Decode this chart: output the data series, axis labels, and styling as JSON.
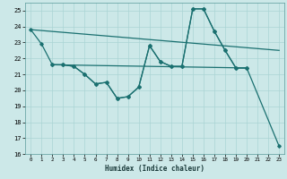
{
  "xlabel": "Humidex (Indice chaleur)",
  "bg_color": "#cce8e8",
  "line_color": "#1a7070",
  "grid_color": "#aad4d4",
  "xlim": [
    -0.5,
    23.5
  ],
  "ylim": [
    16,
    25.5
  ],
  "xticks": [
    0,
    1,
    2,
    3,
    4,
    5,
    6,
    7,
    8,
    9,
    10,
    11,
    12,
    13,
    14,
    15,
    16,
    17,
    18,
    19,
    20,
    21,
    22,
    23
  ],
  "yticks": [
    16,
    17,
    18,
    19,
    20,
    21,
    22,
    23,
    24,
    25
  ],
  "line1_x": [
    0,
    1,
    2,
    3,
    4,
    5,
    6,
    7,
    8,
    9,
    10,
    11,
    12,
    13,
    14,
    15,
    16,
    17,
    18,
    19,
    20,
    23
  ],
  "line1_y": [
    23.8,
    22.9,
    21.6,
    21.6,
    21.5,
    21.0,
    20.4,
    20.5,
    19.5,
    19.6,
    20.2,
    22.8,
    21.8,
    21.5,
    21.5,
    25.1,
    25.1,
    23.7,
    22.5,
    21.4,
    21.4,
    16.5
  ],
  "line2_x": [
    0,
    23
  ],
  "line2_y": [
    23.8,
    22.5
  ],
  "line3_x": [
    2,
    3,
    4,
    5,
    6,
    7,
    8,
    9,
    10,
    11,
    12,
    13,
    14,
    15,
    16,
    17,
    18,
    19,
    20
  ],
  "line3_y": [
    21.6,
    21.6,
    21.5,
    21.0,
    20.4,
    20.5,
    19.5,
    19.6,
    20.2,
    22.8,
    21.8,
    21.5,
    21.5,
    25.1,
    25.1,
    23.7,
    22.5,
    21.4,
    21.4
  ],
  "line4_x": [
    2,
    20
  ],
  "line4_y": [
    21.6,
    21.4
  ]
}
